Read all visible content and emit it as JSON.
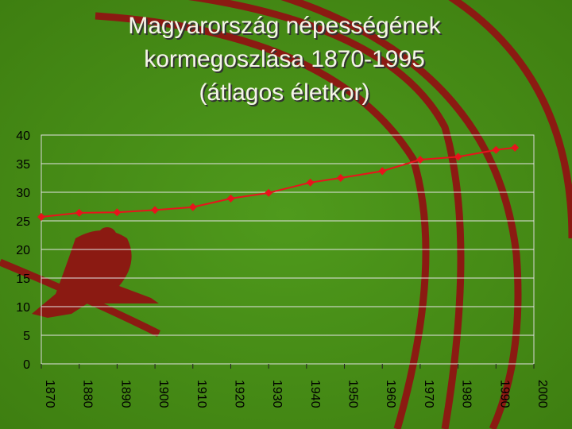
{
  "chart_data": {
    "type": "line",
    "title": [
      "Magyarország népességének",
      "kormegoszlása 1870-1995",
      "(átlagos életkor)"
    ],
    "x": [
      1870,
      1880,
      1890,
      1900,
      1910,
      1920,
      1930,
      1941,
      1949,
      1960,
      1970,
      1980,
      1990,
      1995
    ],
    "series": [
      {
        "color": "#e8141c",
        "values": [
          25.7,
          26.4,
          26.5,
          26.9,
          27.4,
          28.9,
          29.9,
          31.7,
          32.5,
          33.7,
          35.7,
          36.2,
          37.4,
          37.8
        ]
      }
    ],
    "xlim": [
      1870,
      2000
    ],
    "xticks": [
      1870,
      1880,
      1890,
      1900,
      1910,
      1920,
      1930,
      1940,
      1950,
      1960,
      1970,
      1980,
      1990,
      2000
    ],
    "ylim": [
      0,
      40
    ],
    "yticks": [
      0,
      5,
      10,
      15,
      20,
      25,
      30,
      35,
      40
    ],
    "grid": true
  }
}
